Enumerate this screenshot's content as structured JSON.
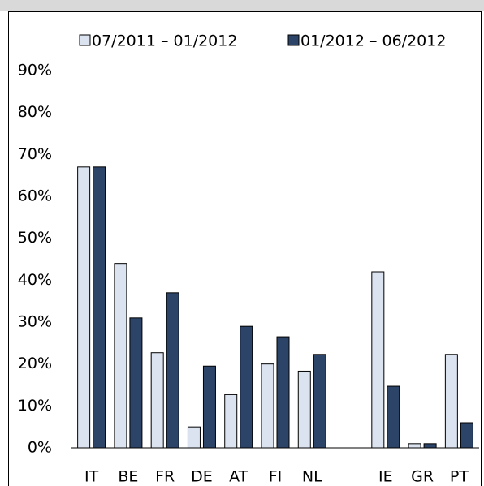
{
  "chart_data": {
    "type": "bar",
    "categories": [
      "IT",
      "BE",
      "FR",
      "DE",
      "AT",
      "FI",
      "NL",
      null,
      "IE",
      "GR",
      "PT"
    ],
    "series": [
      {
        "name": "07/2011 – 01/2012",
        "color": "#dce3f0",
        "values": [
          67,
          44,
          22.7,
          5,
          12.7,
          20,
          18.3,
          null,
          42,
          1,
          22.3
        ]
      },
      {
        "name": "01/2012 – 06/2012",
        "color": "#2c4468",
        "values": [
          67,
          31,
          37,
          19.5,
          29,
          26.5,
          22.3,
          null,
          14.7,
          1,
          6
        ]
      }
    ],
    "ylim": [
      0,
      90
    ],
    "yticks": [
      {
        "value": 0,
        "label": "0%"
      },
      {
        "value": 10,
        "label": "10%"
      },
      {
        "value": 20,
        "label": "20%"
      },
      {
        "value": 30,
        "label": "30%"
      },
      {
        "value": 40,
        "label": "40%"
      },
      {
        "value": 50,
        "label": "50%"
      },
      {
        "value": 60,
        "label": "60%"
      },
      {
        "value": 70,
        "label": "70%"
      },
      {
        "value": 80,
        "label": "80%"
      },
      {
        "value": 90,
        "label": "90%"
      }
    ],
    "grid": false
  }
}
